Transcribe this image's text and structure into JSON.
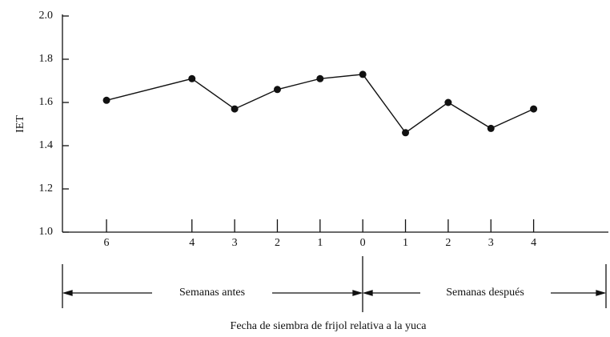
{
  "chart_data": {
    "type": "line",
    "ylabel": "IET",
    "xlabel": "Fecha de siembra de frijol relativa a la yuca",
    "period_labels": [
      "Semanas antes",
      "Semanas después"
    ],
    "x": [
      -6,
      -4,
      -3,
      -2,
      -1,
      0,
      1,
      2,
      3,
      4
    ],
    "series": [
      {
        "color": "#111111",
        "values": [
          1.61,
          1.71,
          1.57,
          1.66,
          1.71,
          1.73,
          1.46,
          1.6,
          1.48,
          1.57
        ]
      }
    ],
    "xlim": [
      -7,
      6
    ],
    "xticks": [
      {
        "value": -6,
        "label": "6"
      },
      {
        "value": -4,
        "label": "4"
      },
      {
        "value": -3,
        "label": "3"
      },
      {
        "value": -2,
        "label": "2"
      },
      {
        "value": -1,
        "label": "1"
      },
      0,
      1,
      2,
      3,
      4,
      6
    ],
    "ylim": [
      1,
      2
    ],
    "yticks": [
      {
        "value": 1,
        "label": "1.0"
      },
      1.2,
      1.4,
      1.6,
      1.8,
      {
        "value": 2,
        "label": "2.0"
      }
    ]
  }
}
